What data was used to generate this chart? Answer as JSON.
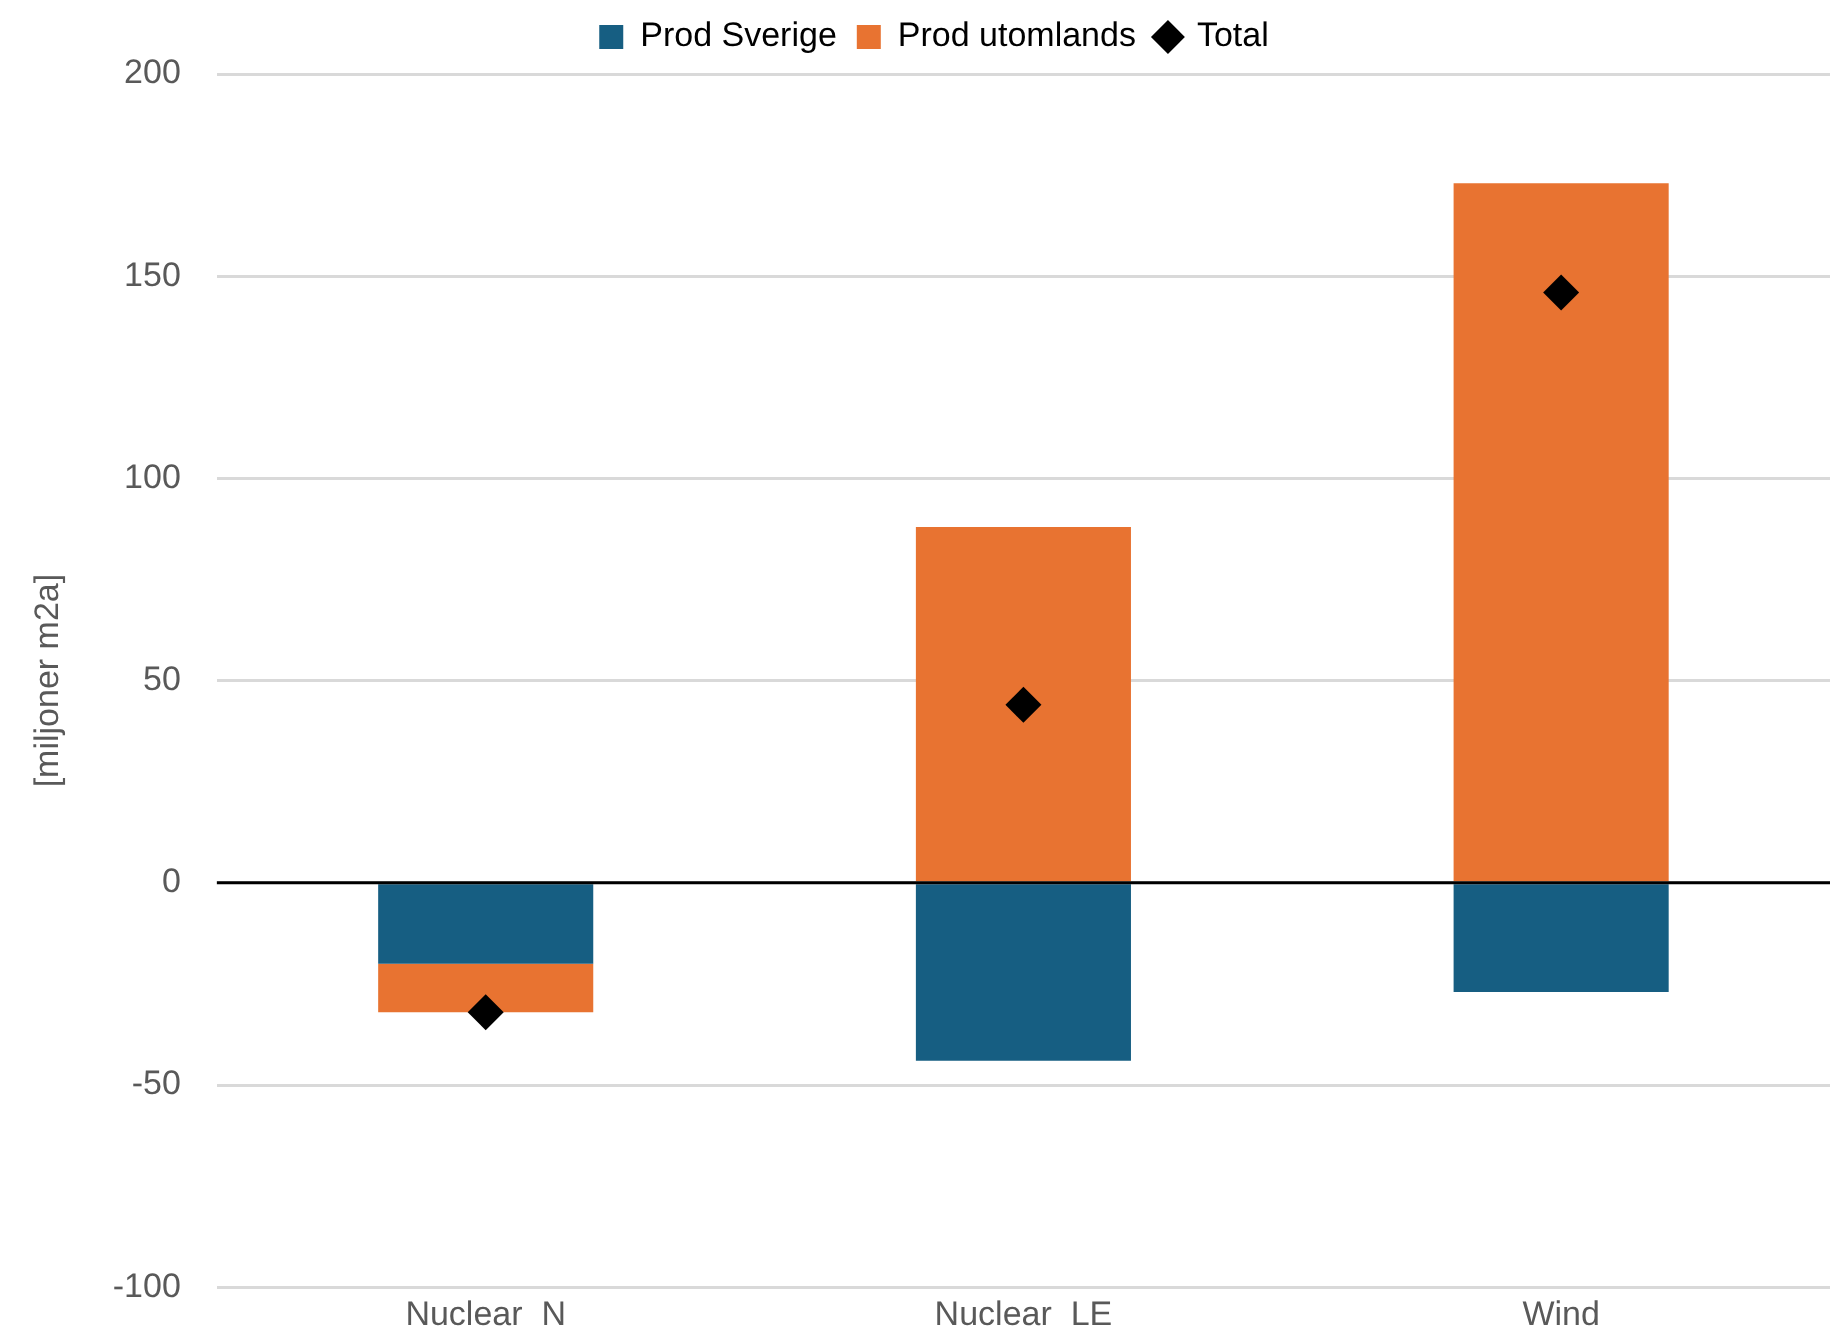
{
  "chart_data": {
    "type": "bar",
    "stacked": true,
    "ylabel": "[miljoner m2a]",
    "categories": [
      "Nuclear  N",
      "Nuclear  LE",
      "Wind"
    ],
    "series": [
      {
        "name": "Prod Sverige",
        "color": "#165e82",
        "values": [
          -20,
          -44,
          -27
        ]
      },
      {
        "name": "Prod utomlands",
        "color": "#e87331",
        "values": [
          -12,
          88,
          173
        ]
      },
      {
        "name": "Total",
        "type": "scatter",
        "color": "#000000",
        "marker": "diamond",
        "values": [
          -32,
          44,
          146
        ]
      }
    ],
    "ylim": [
      -100,
      200
    ],
    "yticks": [
      -100,
      -50,
      0,
      50,
      100,
      150,
      200
    ],
    "grid": "y",
    "legend": "top",
    "ref_lines": [
      {
        "axis": "y",
        "value": 0,
        "color": "#000000"
      }
    ]
  }
}
